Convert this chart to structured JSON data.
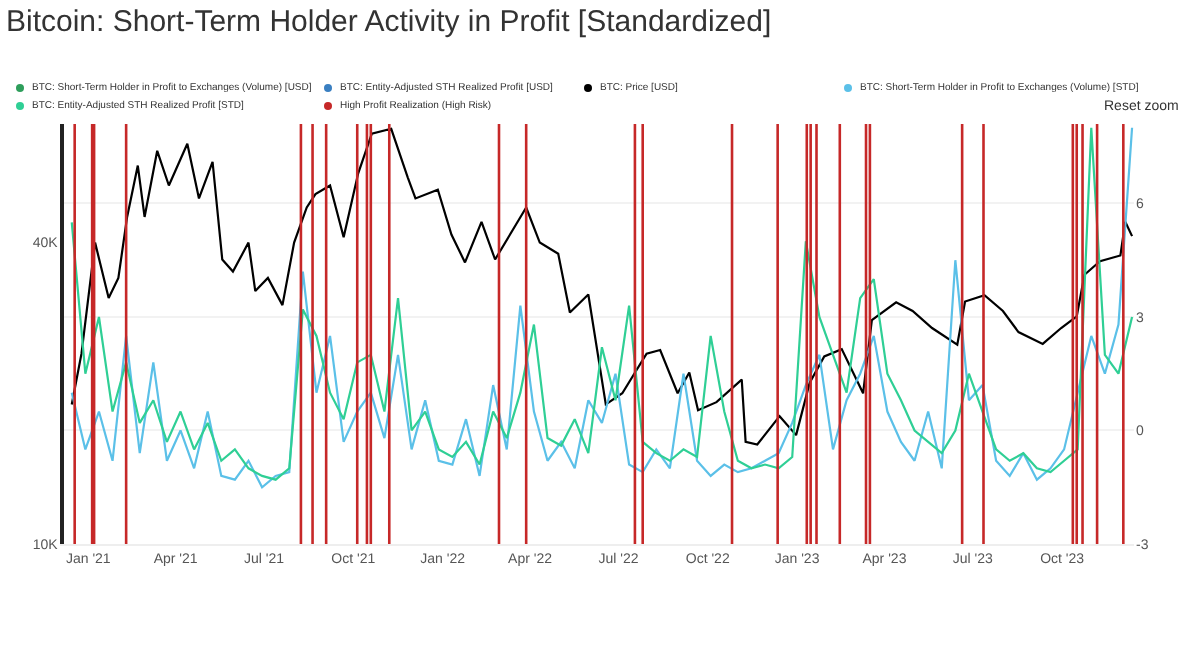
{
  "chart_data": {
    "type": "line",
    "title": "Bitcoin: Short-Term Holder Activity in Profit [Standardized]",
    "annotations": [
      "Reset zoom"
    ],
    "x": [
      "2020-12-15",
      "2020-12-29",
      "2021-01-12",
      "2021-01-26",
      "2021-02-09",
      "2021-02-23",
      "2021-03-09",
      "2021-03-23",
      "2021-04-06",
      "2021-04-20",
      "2021-05-04",
      "2021-05-18",
      "2021-06-01",
      "2021-06-15",
      "2021-06-29",
      "2021-07-13",
      "2021-07-27",
      "2021-08-10",
      "2021-08-24",
      "2021-09-07",
      "2021-09-21",
      "2021-10-05",
      "2021-10-19",
      "2021-11-02",
      "2021-11-16",
      "2021-11-30",
      "2021-12-14",
      "2021-12-28",
      "2022-01-11",
      "2022-01-25",
      "2022-02-08",
      "2022-02-22",
      "2022-03-08",
      "2022-03-22",
      "2022-04-05",
      "2022-04-19",
      "2022-05-03",
      "2022-05-17",
      "2022-05-31",
      "2022-06-14",
      "2022-06-28",
      "2022-07-12",
      "2022-07-26",
      "2022-08-09",
      "2022-08-23",
      "2022-09-06",
      "2022-09-20",
      "2022-10-04",
      "2022-10-18",
      "2022-11-01",
      "2022-11-15",
      "2022-11-29",
      "2022-12-13",
      "2022-12-27",
      "2023-01-10",
      "2023-01-24",
      "2023-02-07",
      "2023-02-21",
      "2023-03-07",
      "2023-03-21",
      "2023-04-04",
      "2023-04-18",
      "2023-05-02",
      "2023-05-16",
      "2023-05-30",
      "2023-06-13",
      "2023-06-27",
      "2023-07-11",
      "2023-07-25",
      "2023-08-08",
      "2023-08-22",
      "2023-09-05",
      "2023-09-19",
      "2023-10-03",
      "2023-10-17",
      "2023-10-31",
      "2023-11-14",
      "2023-11-28",
      "2023-12-12"
    ],
    "series": [
      {
        "name": "BTC: Short-Term Holder in Profit to Exchanges (Volume) [USD]",
        "color": "#2e9e5b",
        "values": [
          null,
          null,
          null,
          null,
          null,
          null,
          null,
          null,
          null,
          null,
          null,
          null,
          null,
          null,
          null,
          null,
          null,
          null,
          null,
          null,
          null,
          null,
          null,
          null,
          null,
          null,
          null,
          null,
          null,
          null,
          null,
          null,
          null,
          null,
          null,
          null,
          null,
          null,
          null,
          null,
          null,
          null,
          null,
          null,
          null,
          null,
          null,
          null,
          null,
          null,
          null,
          null,
          null,
          null,
          null,
          null,
          null,
          null,
          null,
          null,
          null,
          null,
          null,
          null,
          null,
          null,
          null,
          null,
          null,
          null,
          null,
          null,
          null,
          null,
          null,
          null,
          null,
          null,
          null
        ]
      },
      {
        "name": "BTC: Entity-Adjusted STH Realized Profit [USD]",
        "color": "#3a7fc1",
        "values": [
          null,
          null,
          null,
          null,
          null,
          null,
          null,
          null,
          null,
          null,
          null,
          null,
          null,
          null,
          null,
          null,
          null,
          null,
          null,
          null,
          null,
          null,
          null,
          null,
          null,
          null,
          null,
          null,
          null,
          null,
          null,
          null,
          null,
          null,
          null,
          null,
          null,
          null,
          null,
          null,
          null,
          null,
          null,
          null,
          null,
          null,
          null,
          null,
          null,
          null,
          null,
          null,
          null,
          null,
          null,
          null,
          null,
          null,
          null,
          null,
          null,
          null,
          null,
          null,
          null,
          null,
          null,
          null,
          null,
          null,
          null,
          null,
          null,
          null,
          null,
          null,
          null,
          null,
          null
        ]
      },
      {
        "name": "BTC: Price [USD]",
        "color": "#000000",
        "x": [
          "2020-12-15",
          "2020-12-25",
          "2021-01-08",
          "2021-01-22",
          "2021-02-01",
          "2021-02-10",
          "2021-02-21",
          "2021-02-28",
          "2021-03-13",
          "2021-03-25",
          "2021-04-13",
          "2021-04-25",
          "2021-05-09",
          "2021-05-19",
          "2021-05-30",
          "2021-06-15",
          "2021-06-22",
          "2021-07-05",
          "2021-07-20",
          "2021-08-01",
          "2021-08-14",
          "2021-08-23",
          "2021-09-07",
          "2021-09-21",
          "2021-10-06",
          "2021-10-20",
          "2021-11-09",
          "2021-11-26",
          "2021-12-04",
          "2021-12-27",
          "2022-01-10",
          "2022-01-24",
          "2022-02-10",
          "2022-02-24",
          "2022-03-28",
          "2022-04-11",
          "2022-04-30",
          "2022-05-12",
          "2022-05-31",
          "2022-06-18",
          "2022-07-05",
          "2022-07-30",
          "2022-08-13",
          "2022-08-31",
          "2022-09-12",
          "2022-09-21",
          "2022-10-10",
          "2022-11-05",
          "2022-11-09",
          "2022-11-21",
          "2022-12-14",
          "2022-12-31",
          "2023-01-14",
          "2023-01-29",
          "2023-02-16",
          "2023-03-10",
          "2023-03-19",
          "2023-04-13",
          "2023-04-30",
          "2023-05-20",
          "2023-06-15",
          "2023-06-23",
          "2023-07-13",
          "2023-08-01",
          "2023-08-17",
          "2023-09-11",
          "2023-09-30",
          "2023-10-16",
          "2023-10-24",
          "2023-11-09",
          "2023-11-30",
          "2023-12-05",
          "2023-12-12"
        ],
        "values": [
          19000,
          24000,
          40000,
          31000,
          34000,
          45000,
          57000,
          45000,
          61000,
          52000,
          63000,
          49000,
          58000,
          37000,
          35000,
          40000,
          32000,
          34000,
          30000,
          40000,
          47000,
          50000,
          52000,
          41000,
          55000,
          66000,
          67500,
          54000,
          49000,
          51000,
          41500,
          36500,
          44000,
          37000,
          47000,
          40000,
          38000,
          29000,
          31500,
          19000,
          20000,
          24000,
          24400,
          20000,
          22000,
          18500,
          19200,
          21300,
          16000,
          15800,
          18000,
          16500,
          21000,
          23700,
          24500,
          20000,
          28000,
          30400,
          29200,
          27000,
          25000,
          30500,
          31400,
          29200,
          26500,
          25100,
          27000,
          28500,
          34500,
          36700,
          37700,
          44000,
          41200
        ]
      },
      {
        "name": "BTC: Short-Term Holder in Profit to Exchanges (Volume) [STD]",
        "color": "#5bc0e8",
        "axis": "y2",
        "values": [
          1.0,
          -0.5,
          0.5,
          -0.8,
          2.5,
          -0.6,
          1.8,
          -0.8,
          0.0,
          -1.0,
          0.5,
          -1.2,
          -1.3,
          -0.8,
          -1.5,
          -1.2,
          -1.1,
          4.2,
          1.0,
          2.5,
          -0.3,
          0.5,
          1.0,
          -0.2,
          2.0,
          -0.5,
          0.8,
          -0.8,
          -0.9,
          0.3,
          -1.2,
          1.2,
          -0.5,
          3.3,
          0.5,
          -0.8,
          -0.3,
          -1.0,
          0.8,
          0.2,
          1.5,
          -0.9,
          -1.1,
          -0.5,
          -1.0,
          1.5,
          -0.8,
          -1.2,
          -0.9,
          -1.1,
          -1.0,
          -0.8,
          -0.6,
          0.2,
          1.2,
          2.0,
          -0.5,
          0.8,
          1.5,
          2.5,
          0.5,
          -0.3,
          -0.8,
          0.5,
          -1.0,
          4.5,
          0.8,
          1.2,
          -0.8,
          -1.2,
          -0.6,
          -1.3,
          -1.0,
          -0.5,
          1.0,
          2.5,
          1.5,
          2.8,
          8.0
        ]
      },
      {
        "name": "BTC: Entity-Adjusted STH Realized Profit [STD]",
        "color": "#2fcf95",
        "axis": "y2",
        "values": [
          5.5,
          1.5,
          3.0,
          0.5,
          1.8,
          0.2,
          0.8,
          -0.3,
          0.5,
          -0.5,
          0.2,
          -0.8,
          -0.5,
          -1.0,
          -1.2,
          -1.3,
          -1.0,
          3.2,
          2.5,
          1.0,
          0.3,
          1.8,
          2.0,
          0.5,
          3.5,
          0.0,
          0.5,
          -0.5,
          -0.7,
          -0.3,
          -0.9,
          0.5,
          -0.2,
          1.0,
          2.8,
          -0.2,
          -0.4,
          0.3,
          -0.6,
          2.2,
          0.8,
          3.3,
          -0.3,
          -0.6,
          -0.8,
          -0.5,
          -0.7,
          2.5,
          0.5,
          -0.8,
          -1.0,
          -0.9,
          -1.0,
          -0.7,
          5.0,
          3.0,
          2.0,
          1.0,
          3.5,
          4.0,
          1.5,
          0.8,
          0.0,
          -0.3,
          -0.6,
          0.0,
          1.5,
          0.5,
          -0.5,
          -0.8,
          -0.6,
          -1.0,
          -1.1,
          -0.8,
          -0.5,
          8.0,
          2.0,
          1.5,
          3.0
        ]
      }
    ],
    "ref_lines": [
      {
        "axis": "x",
        "value": "2020-12-18",
        "label": "High Profit Realization (High Risk)",
        "color": "#c62828"
      },
      {
        "axis": "x",
        "value": "2021-01-05",
        "color": "#c62828"
      },
      {
        "axis": "x",
        "value": "2021-01-07",
        "color": "#c62828"
      },
      {
        "axis": "x",
        "value": "2021-02-09",
        "color": "#c62828"
      },
      {
        "axis": "x",
        "value": "2021-08-08",
        "color": "#c62828"
      },
      {
        "axis": "x",
        "value": "2021-08-20",
        "color": "#c62828"
      },
      {
        "axis": "x",
        "value": "2021-09-03",
        "color": "#c62828"
      },
      {
        "axis": "x",
        "value": "2021-10-05",
        "color": "#c62828"
      },
      {
        "axis": "x",
        "value": "2021-10-15",
        "color": "#c62828"
      },
      {
        "axis": "x",
        "value": "2021-10-19",
        "color": "#c62828"
      },
      {
        "axis": "x",
        "value": "2021-11-07",
        "color": "#c62828"
      },
      {
        "axis": "x",
        "value": "2022-02-28",
        "color": "#c62828"
      },
      {
        "axis": "x",
        "value": "2022-03-28",
        "color": "#c62828"
      },
      {
        "axis": "x",
        "value": "2022-07-18",
        "color": "#c62828"
      },
      {
        "axis": "x",
        "value": "2022-07-26",
        "color": "#c62828"
      },
      {
        "axis": "x",
        "value": "2022-10-26",
        "color": "#c62828"
      },
      {
        "axis": "x",
        "value": "2022-12-12",
        "color": "#c62828"
      },
      {
        "axis": "x",
        "value": "2023-01-11",
        "color": "#c62828"
      },
      {
        "axis": "x",
        "value": "2023-01-15",
        "color": "#c62828"
      },
      {
        "axis": "x",
        "value": "2023-01-21",
        "color": "#c62828"
      },
      {
        "axis": "x",
        "value": "2023-02-14",
        "color": "#c62828"
      },
      {
        "axis": "x",
        "value": "2023-03-13",
        "color": "#c62828"
      },
      {
        "axis": "x",
        "value": "2023-03-17",
        "color": "#c62828"
      },
      {
        "axis": "x",
        "value": "2023-06-20",
        "color": "#c62828"
      },
      {
        "axis": "x",
        "value": "2023-07-12",
        "color": "#c62828"
      },
      {
        "axis": "x",
        "value": "2023-10-12",
        "color": "#c62828"
      },
      {
        "axis": "x",
        "value": "2023-10-16",
        "color": "#c62828"
      },
      {
        "axis": "x",
        "value": "2023-10-22",
        "color": "#c62828"
      },
      {
        "axis": "x",
        "value": "2023-11-06",
        "color": "#c62828"
      },
      {
        "axis": "x",
        "value": "2023-12-03",
        "color": "#c62828"
      }
    ],
    "xlim": [
      "2020-12-07",
      "2023-12-14"
    ],
    "xticks": [
      {
        "value": "2021-01-01",
        "label": "Jan '21"
      },
      {
        "value": "2021-04-01",
        "label": "Apr '21"
      },
      {
        "value": "2021-07-01",
        "label": "Jul '21"
      },
      {
        "value": "2021-10-01",
        "label": "Oct '21"
      },
      {
        "value": "2022-01-01",
        "label": "Jan '22"
      },
      {
        "value": "2022-04-01",
        "label": "Apr '22"
      },
      {
        "value": "2022-07-01",
        "label": "Jul '22"
      },
      {
        "value": "2022-10-01",
        "label": "Oct '22"
      },
      {
        "value": "2023-01-01",
        "label": "Jan '23"
      },
      {
        "value": "2023-04-01",
        "label": "Apr '23"
      },
      {
        "value": "2023-07-01",
        "label": "Jul '23"
      },
      {
        "value": "2023-10-01",
        "label": "Oct '23"
      }
    ],
    "log": "y",
    "ylim": [
      10000,
      69000
    ],
    "yticks": [
      {
        "value": 10000,
        "label": "10K"
      },
      {
        "value": 40000,
        "label": "40K"
      }
    ],
    "y2lim": [
      -3,
      8.1
    ],
    "y2ticks": [
      -3,
      0,
      3,
      6
    ],
    "grid": "y",
    "legend": "top",
    "line_style": "solid",
    "marker": "none"
  }
}
